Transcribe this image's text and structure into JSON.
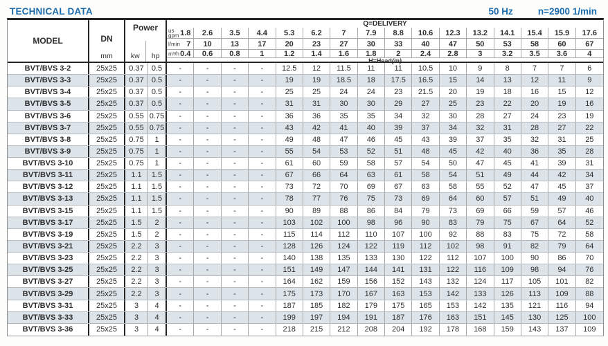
{
  "page": {
    "title": "TECHNICAL DATA",
    "frequency": "50 Hz",
    "speed": "n=2900 1/min"
  },
  "colors": {
    "accent": "#1c6bab",
    "row_shade": "#dce3e9"
  },
  "table": {
    "columns": {
      "model": "MODEL",
      "dn": "DN",
      "dn_unit": "mm",
      "power": "Power",
      "power_kw": "kw",
      "power_hp": "hp"
    },
    "delivery": {
      "title": "Q=DELIVERY",
      "head_title_prefix": "H=Head",
      "head_title_unit": "(m)",
      "unit_rows": [
        {
          "label_lines": [
            "us",
            "gpm"
          ],
          "values": [
            "1.8",
            "2.6",
            "3.5",
            "4.4",
            "5.3",
            "6.2",
            "7",
            "7.9",
            "8.8",
            "10.6",
            "12.3",
            "13.2",
            "14.1",
            "15.4",
            "15.9",
            "17.6"
          ]
        },
        {
          "label_lines": [
            "l/min"
          ],
          "values": [
            "7",
            "10",
            "13",
            "17",
            "20",
            "23",
            "27",
            "30",
            "33",
            "40",
            "47",
            "50",
            "53",
            "58",
            "60",
            "67"
          ]
        },
        {
          "label_lines": [
            "m³/h"
          ],
          "values": [
            "0.4",
            "0.6",
            "0.8",
            "1",
            "1.2",
            "1.4",
            "1.6",
            "1.8",
            "2",
            "2.4",
            "2.8",
            "3",
            "3.2",
            "3.5",
            "3.6",
            "4"
          ]
        }
      ]
    },
    "rows": [
      {
        "model": "BVT/BVS 3-2",
        "dn": "25x25",
        "kw": "0.37",
        "hp": "0.5",
        "heads": [
          "-",
          "-",
          "-",
          "-",
          "12.5",
          "12",
          "11.5",
          "11",
          "11",
          "10.5",
          "10",
          "9",
          "8",
          "7",
          "7",
          "6"
        ]
      },
      {
        "model": "BVT/BVS 3-3",
        "dn": "25x25",
        "kw": "0.37",
        "hp": "0.5",
        "heads": [
          "-",
          "-",
          "-",
          "-",
          "19",
          "19",
          "18.5",
          "18",
          "17.5",
          "16.5",
          "15",
          "14",
          "13",
          "12",
          "11",
          "9"
        ]
      },
      {
        "model": "BVT/BVS 3-4",
        "dn": "25x25",
        "kw": "0.37",
        "hp": "0.5",
        "heads": [
          "-",
          "-",
          "-",
          "-",
          "25",
          "25",
          "24",
          "24",
          "23",
          "21.5",
          "20",
          "19",
          "18",
          "16",
          "15",
          "12"
        ]
      },
      {
        "model": "BVT/BVS 3-5",
        "dn": "25x25",
        "kw": "0.37",
        "hp": "0.5",
        "heads": [
          "-",
          "-",
          "-",
          "-",
          "31",
          "31",
          "30",
          "30",
          "29",
          "27",
          "25",
          "23",
          "22",
          "20",
          "19",
          "16"
        ]
      },
      {
        "model": "BVT/BVS 3-6",
        "dn": "25x25",
        "kw": "0.55",
        "hp": "0.75",
        "heads": [
          "-",
          "-",
          "-",
          "-",
          "36",
          "36",
          "35",
          "35",
          "34",
          "32",
          "30",
          "28",
          "27",
          "24",
          "23",
          "19"
        ]
      },
      {
        "model": "BVT/BVS 3-7",
        "dn": "25x25",
        "kw": "0.55",
        "hp": "0.75",
        "heads": [
          "-",
          "-",
          "-",
          "-",
          "43",
          "42",
          "41",
          "40",
          "39",
          "37",
          "34",
          "32",
          "31",
          "28",
          "27",
          "22"
        ]
      },
      {
        "model": "BVT/BVS 3-8",
        "dn": "25x25",
        "kw": "0.75",
        "hp": "1",
        "heads": [
          "-",
          "-",
          "-",
          "-",
          "49",
          "48",
          "47",
          "46",
          "45",
          "43",
          "39",
          "37",
          "35",
          "32",
          "31",
          "25"
        ]
      },
      {
        "model": "BVT/BVS 3-9",
        "dn": "25x25",
        "kw": "0.75",
        "hp": "1",
        "heads": [
          "-",
          "-",
          "-",
          "-",
          "55",
          "54",
          "53",
          "52",
          "51",
          "48",
          "45",
          "42",
          "40",
          "36",
          "35",
          "28"
        ]
      },
      {
        "model": "BVT/BVS 3-10",
        "dn": "25x25",
        "kw": "0.75",
        "hp": "1",
        "heads": [
          "-",
          "-",
          "-",
          "-",
          "61",
          "60",
          "59",
          "58",
          "57",
          "54",
          "50",
          "47",
          "45",
          "41",
          "39",
          "31"
        ]
      },
      {
        "model": "BVT/BVS 3-11",
        "dn": "25x25",
        "kw": "1.1",
        "hp": "1.5",
        "heads": [
          "-",
          "-",
          "-",
          "-",
          "67",
          "66",
          "64",
          "63",
          "61",
          "58",
          "54",
          "51",
          "49",
          "44",
          "42",
          "34"
        ]
      },
      {
        "model": "BVT/BVS 3-12",
        "dn": "25x25",
        "kw": "1.1",
        "hp": "1.5",
        "heads": [
          "-",
          "-",
          "-",
          "-",
          "73",
          "72",
          "70",
          "69",
          "67",
          "63",
          "58",
          "55",
          "52",
          "47",
          "45",
          "37"
        ]
      },
      {
        "model": "BVT/BVS 3-13",
        "dn": "25x25",
        "kw": "1.1",
        "hp": "1.5",
        "heads": [
          "-",
          "-",
          "-",
          "-",
          "78",
          "77",
          "76",
          "75",
          "73",
          "69",
          "64",
          "60",
          "57",
          "51",
          "49",
          "40"
        ]
      },
      {
        "model": "BVT/BVS 3-15",
        "dn": "25x25",
        "kw": "1.1",
        "hp": "1.5",
        "heads": [
          "-",
          "-",
          "-",
          "-",
          "90",
          "89",
          "88",
          "86",
          "84",
          "79",
          "73",
          "69",
          "66",
          "59",
          "57",
          "46"
        ]
      },
      {
        "model": "BVT/BVS 3-17",
        "dn": "25x25",
        "kw": "1.5",
        "hp": "2",
        "heads": [
          "-",
          "-",
          "-",
          "-",
          "103",
          "102",
          "100",
          "98",
          "96",
          "90",
          "83",
          "79",
          "75",
          "67",
          "64",
          "52"
        ]
      },
      {
        "model": "BVT/BVS 3-19",
        "dn": "25x25",
        "kw": "1.5",
        "hp": "2",
        "heads": [
          "-",
          "-",
          "-",
          "-",
          "115",
          "114",
          "112",
          "110",
          "107",
          "100",
          "92",
          "88",
          "83",
          "75",
          "72",
          "58"
        ]
      },
      {
        "model": "BVT/BVS 3-21",
        "dn": "25x25",
        "kw": "2.2",
        "hp": "3",
        "heads": [
          "-",
          "-",
          "-",
          "-",
          "128",
          "126",
          "124",
          "122",
          "119",
          "112",
          "102",
          "98",
          "91",
          "82",
          "79",
          "64"
        ]
      },
      {
        "model": "BVT/BVS 3-23",
        "dn": "25x25",
        "kw": "2.2",
        "hp": "3",
        "heads": [
          "-",
          "-",
          "-",
          "-",
          "140",
          "138",
          "135",
          "133",
          "130",
          "122",
          "112",
          "107",
          "100",
          "90",
          "86",
          "70"
        ]
      },
      {
        "model": "BVT/BVS 3-25",
        "dn": "25x25",
        "kw": "2.2",
        "hp": "3",
        "heads": [
          "-",
          "-",
          "-",
          "-",
          "151",
          "149",
          "147",
          "144",
          "141",
          "131",
          "122",
          "116",
          "109",
          "98",
          "94",
          "76"
        ]
      },
      {
        "model": "BVT/BVS 3-27",
        "dn": "25x25",
        "kw": "2.2",
        "hp": "3",
        "heads": [
          "-",
          "-",
          "-",
          "-",
          "164",
          "162",
          "159",
          "156",
          "152",
          "143",
          "132",
          "124",
          "117",
          "105",
          "101",
          "82"
        ]
      },
      {
        "model": "BVT/BVS 3-29",
        "dn": "25x25",
        "kw": "2.2",
        "hp": "3",
        "heads": [
          "-",
          "-",
          "-",
          "-",
          "175",
          "173",
          "170",
          "167",
          "163",
          "153",
          "142",
          "133",
          "126",
          "113",
          "109",
          "88"
        ]
      },
      {
        "model": "BVT/BVS 3-31",
        "dn": "25x25",
        "kw": "3",
        "hp": "4",
        "heads": [
          "-",
          "-",
          "-",
          "-",
          "187",
          "185",
          "182",
          "179",
          "175",
          "165",
          "153",
          "142",
          "135",
          "121",
          "116",
          "94"
        ]
      },
      {
        "model": "BVT/BVS 3-33",
        "dn": "25x25",
        "kw": "3",
        "hp": "4",
        "heads": [
          "-",
          "-",
          "-",
          "-",
          "199",
          "197",
          "194",
          "191",
          "187",
          "176",
          "163",
          "151",
          "145",
          "130",
          "125",
          "100"
        ]
      },
      {
        "model": "BVT/BVS 3-36",
        "dn": "25x25",
        "kw": "3",
        "hp": "4",
        "heads": [
          "-",
          "-",
          "-",
          "-",
          "218",
          "215",
          "212",
          "208",
          "204",
          "192",
          "178",
          "168",
          "159",
          "143",
          "137",
          "109"
        ]
      }
    ]
  }
}
